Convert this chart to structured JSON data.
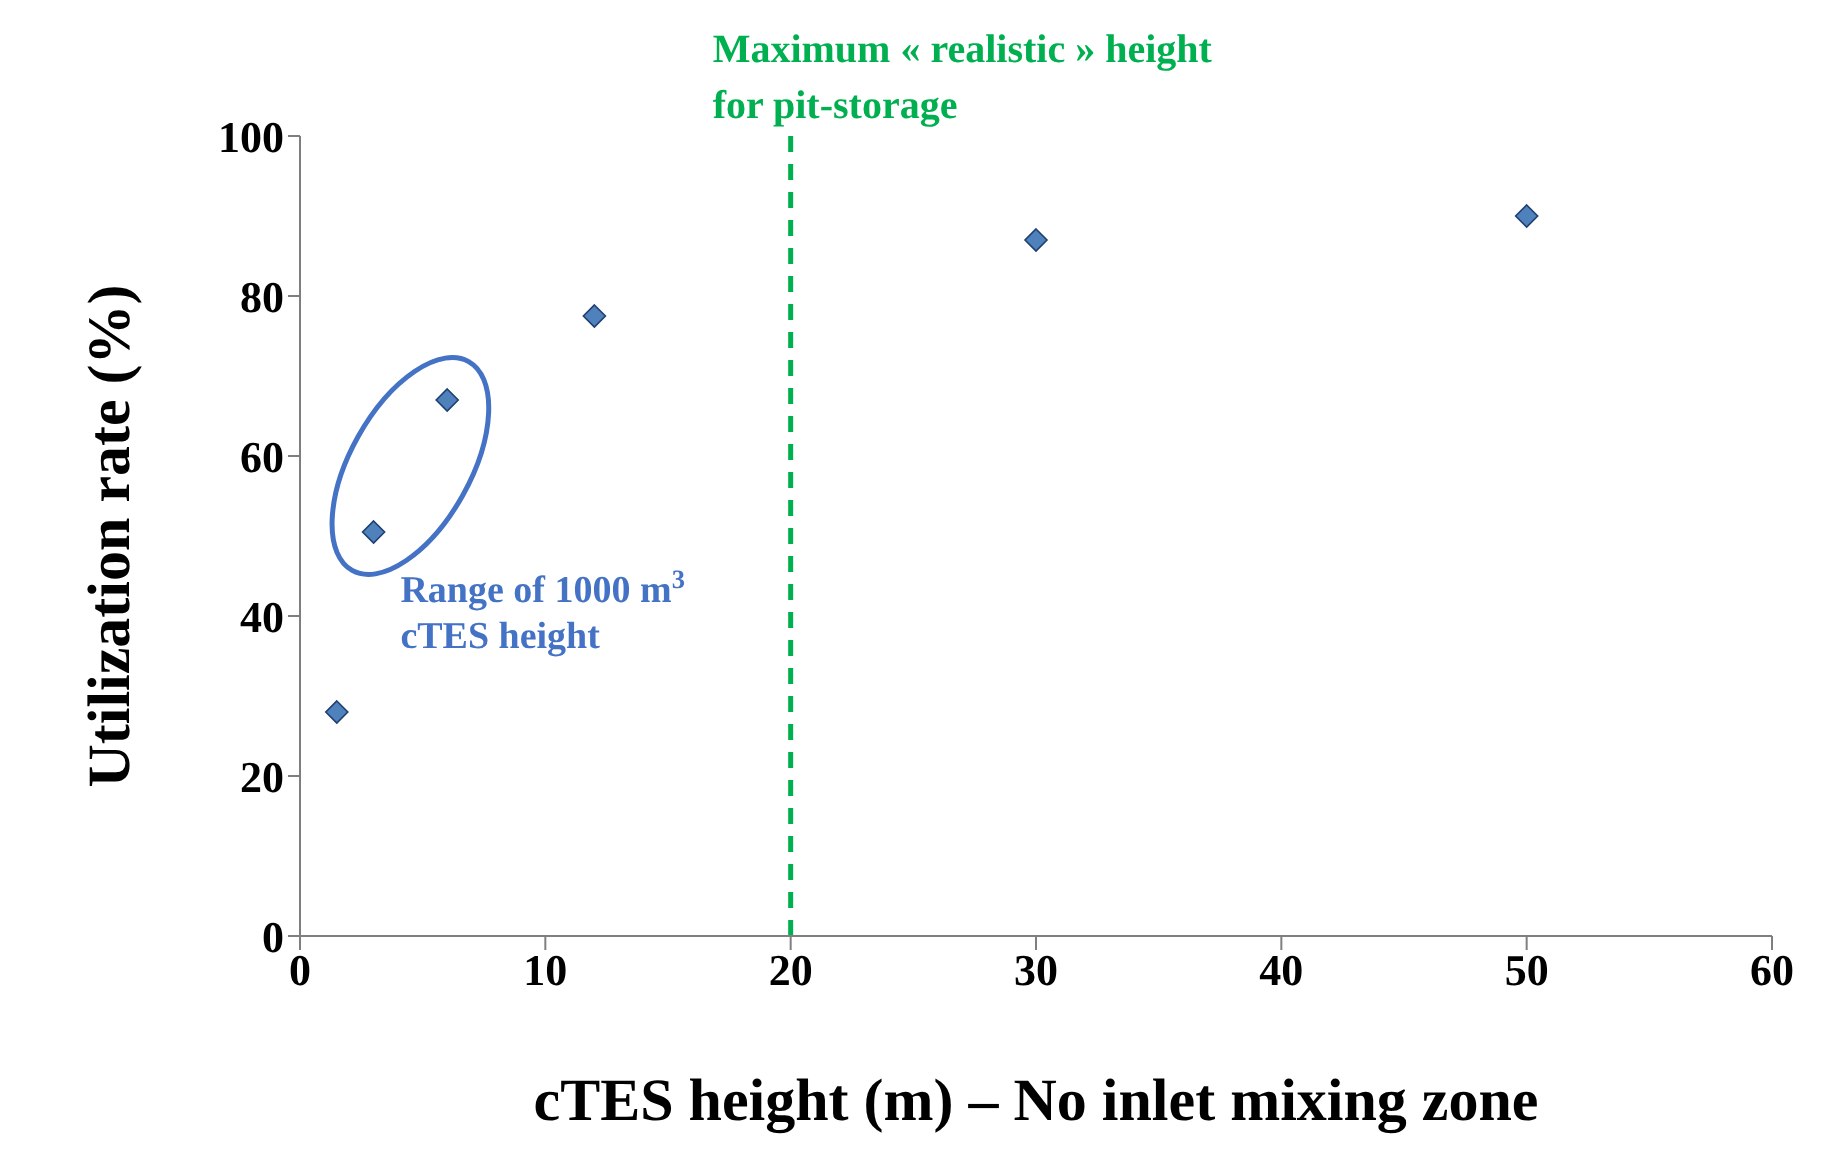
{
  "chart_data": {
    "type": "scatter",
    "xlabel": "cTES height (m) – No inlet mixing zone",
    "ylabel": "Utilization rate (%)",
    "x": [
      1.5,
      3,
      6,
      12,
      30,
      50
    ],
    "series": [
      {
        "color": "#4f81bd",
        "values": [
          28,
          50.5,
          67,
          77.5,
          87,
          90
        ]
      }
    ],
    "xlim": [
      0,
      60
    ],
    "xticks": [
      0,
      10,
      20,
      30,
      40,
      50,
      60
    ],
    "ylim": [
      0,
      100
    ],
    "yticks": [
      0,
      20,
      40,
      60,
      80,
      100
    ],
    "marker": "diamond",
    "grid": false,
    "ref_lines": [
      {
        "axis": "x",
        "value": 20,
        "label": "Maximum « realistic » height for pit-storage",
        "color": "#00b050",
        "line_style": "dashed"
      }
    ],
    "annotations": [
      "Range of 1000 m$^{3}$ cTES height"
    ]
  }
}
